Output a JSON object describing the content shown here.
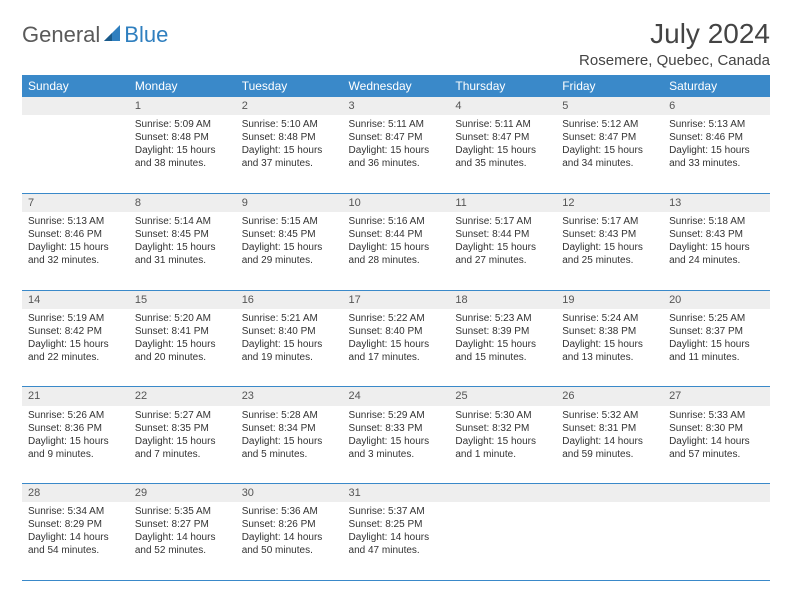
{
  "logo": {
    "part1": "General",
    "part2": "Blue"
  },
  "title": "July 2024",
  "location": "Rosemere, Quebec, Canada",
  "dayHeaders": [
    "Sunday",
    "Monday",
    "Tuesday",
    "Wednesday",
    "Thursday",
    "Friday",
    "Saturday"
  ],
  "header_bg": "#3a89c9",
  "daynum_bg": "#eeeeee",
  "border_color": "#3a89c9",
  "title_fontsize": 28,
  "location_fontsize": 15,
  "header_fontsize": 12,
  "cell_fontsize": 10,
  "weeks": [
    {
      "nums": [
        "",
        "1",
        "2",
        "3",
        "4",
        "5",
        "6"
      ],
      "cells": [
        null,
        {
          "sunrise": "5:09 AM",
          "sunset": "8:48 PM",
          "daylight": "15 hours and 38 minutes."
        },
        {
          "sunrise": "5:10 AM",
          "sunset": "8:48 PM",
          "daylight": "15 hours and 37 minutes."
        },
        {
          "sunrise": "5:11 AM",
          "sunset": "8:47 PM",
          "daylight": "15 hours and 36 minutes."
        },
        {
          "sunrise": "5:11 AM",
          "sunset": "8:47 PM",
          "daylight": "15 hours and 35 minutes."
        },
        {
          "sunrise": "5:12 AM",
          "sunset": "8:47 PM",
          "daylight": "15 hours and 34 minutes."
        },
        {
          "sunrise": "5:13 AM",
          "sunset": "8:46 PM",
          "daylight": "15 hours and 33 minutes."
        }
      ]
    },
    {
      "nums": [
        "7",
        "8",
        "9",
        "10",
        "11",
        "12",
        "13"
      ],
      "cells": [
        {
          "sunrise": "5:13 AM",
          "sunset": "8:46 PM",
          "daylight": "15 hours and 32 minutes."
        },
        {
          "sunrise": "5:14 AM",
          "sunset": "8:45 PM",
          "daylight": "15 hours and 31 minutes."
        },
        {
          "sunrise": "5:15 AM",
          "sunset": "8:45 PM",
          "daylight": "15 hours and 29 minutes."
        },
        {
          "sunrise": "5:16 AM",
          "sunset": "8:44 PM",
          "daylight": "15 hours and 28 minutes."
        },
        {
          "sunrise": "5:17 AM",
          "sunset": "8:44 PM",
          "daylight": "15 hours and 27 minutes."
        },
        {
          "sunrise": "5:17 AM",
          "sunset": "8:43 PM",
          "daylight": "15 hours and 25 minutes."
        },
        {
          "sunrise": "5:18 AM",
          "sunset": "8:43 PM",
          "daylight": "15 hours and 24 minutes."
        }
      ]
    },
    {
      "nums": [
        "14",
        "15",
        "16",
        "17",
        "18",
        "19",
        "20"
      ],
      "cells": [
        {
          "sunrise": "5:19 AM",
          "sunset": "8:42 PM",
          "daylight": "15 hours and 22 minutes."
        },
        {
          "sunrise": "5:20 AM",
          "sunset": "8:41 PM",
          "daylight": "15 hours and 20 minutes."
        },
        {
          "sunrise": "5:21 AM",
          "sunset": "8:40 PM",
          "daylight": "15 hours and 19 minutes."
        },
        {
          "sunrise": "5:22 AM",
          "sunset": "8:40 PM",
          "daylight": "15 hours and 17 minutes."
        },
        {
          "sunrise": "5:23 AM",
          "sunset": "8:39 PM",
          "daylight": "15 hours and 15 minutes."
        },
        {
          "sunrise": "5:24 AM",
          "sunset": "8:38 PM",
          "daylight": "15 hours and 13 minutes."
        },
        {
          "sunrise": "5:25 AM",
          "sunset": "8:37 PM",
          "daylight": "15 hours and 11 minutes."
        }
      ]
    },
    {
      "nums": [
        "21",
        "22",
        "23",
        "24",
        "25",
        "26",
        "27"
      ],
      "cells": [
        {
          "sunrise": "5:26 AM",
          "sunset": "8:36 PM",
          "daylight": "15 hours and 9 minutes."
        },
        {
          "sunrise": "5:27 AM",
          "sunset": "8:35 PM",
          "daylight": "15 hours and 7 minutes."
        },
        {
          "sunrise": "5:28 AM",
          "sunset": "8:34 PM",
          "daylight": "15 hours and 5 minutes."
        },
        {
          "sunrise": "5:29 AM",
          "sunset": "8:33 PM",
          "daylight": "15 hours and 3 minutes."
        },
        {
          "sunrise": "5:30 AM",
          "sunset": "8:32 PM",
          "daylight": "15 hours and 1 minute."
        },
        {
          "sunrise": "5:32 AM",
          "sunset": "8:31 PM",
          "daylight": "14 hours and 59 minutes."
        },
        {
          "sunrise": "5:33 AM",
          "sunset": "8:30 PM",
          "daylight": "14 hours and 57 minutes."
        }
      ]
    },
    {
      "nums": [
        "28",
        "29",
        "30",
        "31",
        "",
        "",
        ""
      ],
      "cells": [
        {
          "sunrise": "5:34 AM",
          "sunset": "8:29 PM",
          "daylight": "14 hours and 54 minutes."
        },
        {
          "sunrise": "5:35 AM",
          "sunset": "8:27 PM",
          "daylight": "14 hours and 52 minutes."
        },
        {
          "sunrise": "5:36 AM",
          "sunset": "8:26 PM",
          "daylight": "14 hours and 50 minutes."
        },
        {
          "sunrise": "5:37 AM",
          "sunset": "8:25 PM",
          "daylight": "14 hours and 47 minutes."
        },
        null,
        null,
        null
      ]
    }
  ]
}
